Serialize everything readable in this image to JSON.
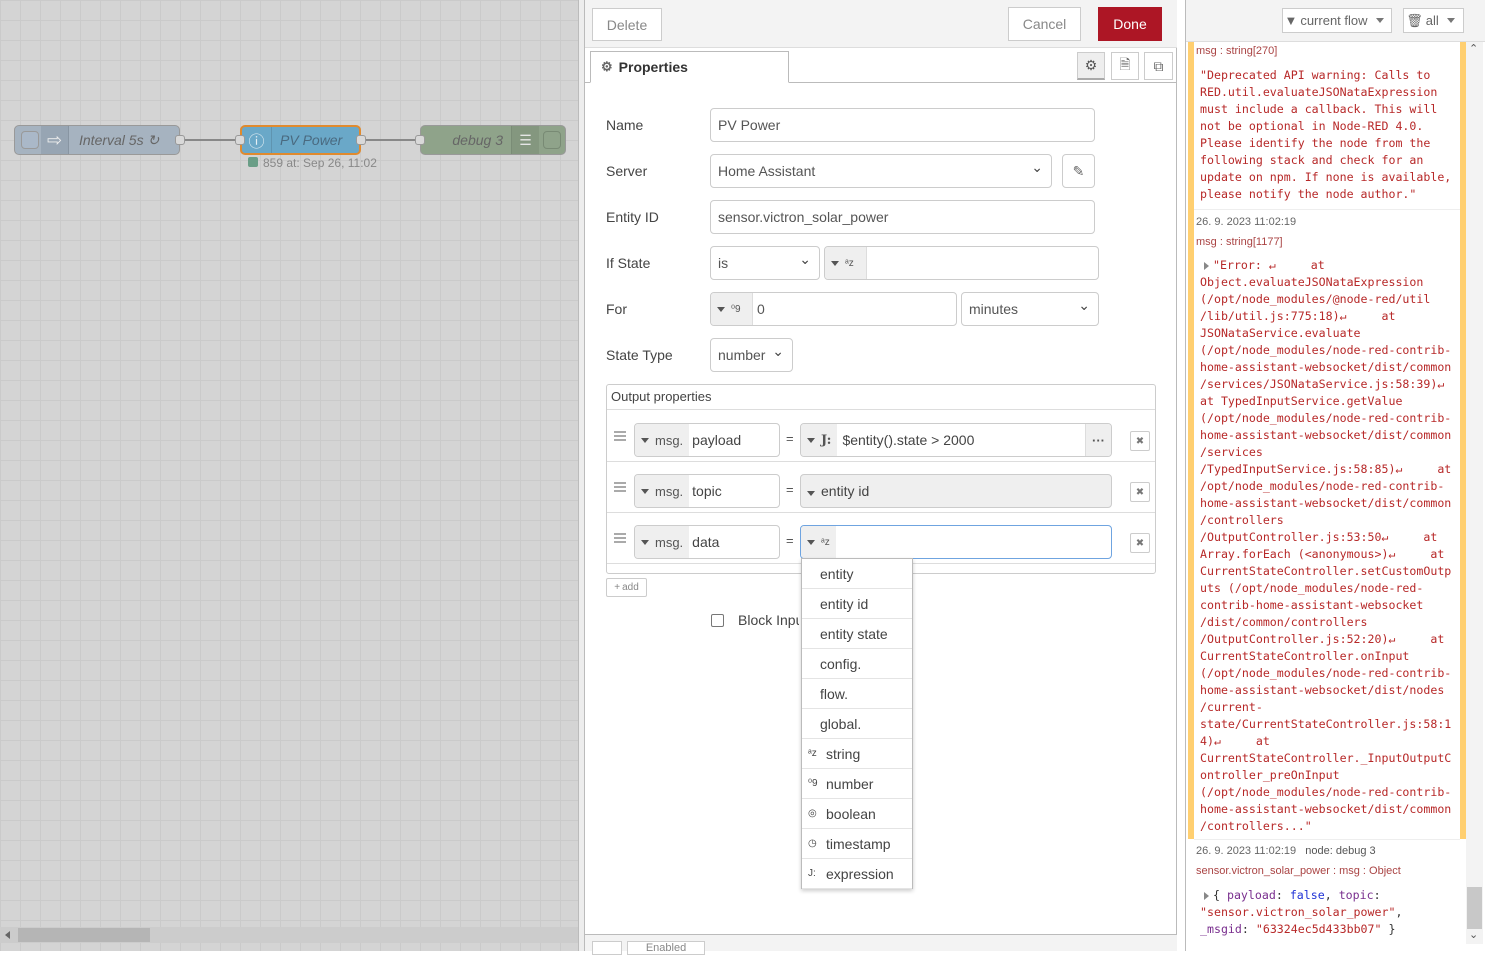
{
  "flow": {
    "nodes": [
      {
        "label": "Interval 5s ↻",
        "icon": "inject-arrow-icon"
      },
      {
        "label": "PV Power",
        "icon": "info-icon"
      },
      {
        "label": "debug 3",
        "icon": "debug-list-icon"
      }
    ],
    "status": "859 at: Sep 26, 11:02"
  },
  "tray": {
    "delete": "Delete",
    "cancel": "Cancel",
    "done": "Done",
    "done_color": "#ad1625",
    "tab": "Properties",
    "fields": {
      "name": {
        "label": "Name",
        "value": "PV Power"
      },
      "server": {
        "label": "Server",
        "value": "Home Assistant"
      },
      "entity": {
        "label": "Entity ID",
        "value": "sensor.victron_solar_power"
      },
      "ifstate": {
        "label": "If State",
        "op": "is",
        "value": ""
      },
      "for": {
        "label": "For",
        "value": "0",
        "unit": "minutes"
      },
      "statetype": {
        "label": "State Type",
        "value": "number"
      }
    },
    "output": {
      "title": "Output properties",
      "rows": [
        {
          "prefix": "msg.",
          "prop": "payload",
          "eq": "=",
          "value": "$entity().state > 2000",
          "more": "···"
        },
        {
          "prefix": "msg.",
          "prop": "topic",
          "eq": "=",
          "value": "entity id"
        },
        {
          "prefix": "msg.",
          "prop": "data",
          "eq": "=",
          "value": ""
        }
      ],
      "add": "add"
    },
    "block_input": "Block Input",
    "menu": [
      {
        "label": "entity"
      },
      {
        "label": "entity id"
      },
      {
        "label": "entity state"
      },
      {
        "label": "config."
      },
      {
        "label": "flow."
      },
      {
        "label": "global."
      },
      {
        "label": "string",
        "icon": "ᵃz"
      },
      {
        "label": "number",
        "icon": "⁰9"
      },
      {
        "label": "boolean",
        "icon": "◎"
      },
      {
        "label": "timestamp",
        "icon": "◷"
      },
      {
        "label": "expression",
        "icon": "J:"
      }
    ],
    "footer": "Enabled"
  },
  "debug": {
    "filter": "current flow",
    "clear": "all",
    "messages": [
      {
        "meta": "msg : string[270]",
        "lines": [
          "\"Deprecated API warning: Calls to",
          "RED.util.evaluateJSONataExpression",
          "must include a callback. This will",
          "not be optional in Node-RED 4.0.",
          "Please identify the node from the",
          "following stack and check for an",
          "update on npm. If none is available,",
          "please notify the node author.\""
        ]
      },
      {
        "time": "26. 9. 2023 11:02:19",
        "meta": "msg : string[1177]",
        "lines": [
          "\"Error: ↵     at",
          "Object.evaluateJSONataExpression",
          "(/opt/node_modules/@node-red/util",
          "/lib/util.js:775:18)↵     at",
          "JSONataService.evaluate",
          "(/opt/node_modules/node-red-contrib-",
          "home-assistant-websocket/dist/common",
          "/services/JSONataService.js:58:39)↵",
          "at TypedInputService.getValue",
          "(/opt/node_modules/node-red-contrib-",
          "home-assistant-websocket/dist/common",
          "/services",
          "/TypedInputService.js:58:85)↵     at",
          "/opt/node_modules/node-red-contrib-",
          "home-assistant-websocket/dist/common",
          "/controllers",
          "/OutputController.js:53:50↵     at",
          "Array.forEach (<anonymous>)↵     at",
          "CurrentStateController.setCustomOutp",
          "uts (/opt/node_modules/node-red-",
          "contrib-home-assistant-websocket",
          "/dist/common/controllers",
          "/OutputController.js:52:20)↵     at",
          "CurrentStateController.onInput",
          "(/opt/node_modules/node-red-contrib-",
          "home-assistant-websocket/dist/nodes",
          "/current-",
          "state/CurrentStateController.js:58:1",
          "4)↵     at",
          "CurrentStateController._InputOutputC",
          "ontroller_preOnInput",
          "(/opt/node_modules/node-red-contrib-",
          "home-assistant-websocket/dist/common",
          "/controllers...\""
        ]
      },
      {
        "time": "26. 9. 2023 11:02:19",
        "node": "node: debug 3",
        "meta": "sensor.victron_solar_power : msg : Object",
        "obj": {
          "payload_key": "payload",
          "payload_val": "false",
          "topic_key": "topic",
          "topic_val": "\"sensor.victron_solar_power\"",
          "msgid_key": "_msgid",
          "msgid_val": "\"63324ec5d433bb07\""
        }
      }
    ]
  }
}
